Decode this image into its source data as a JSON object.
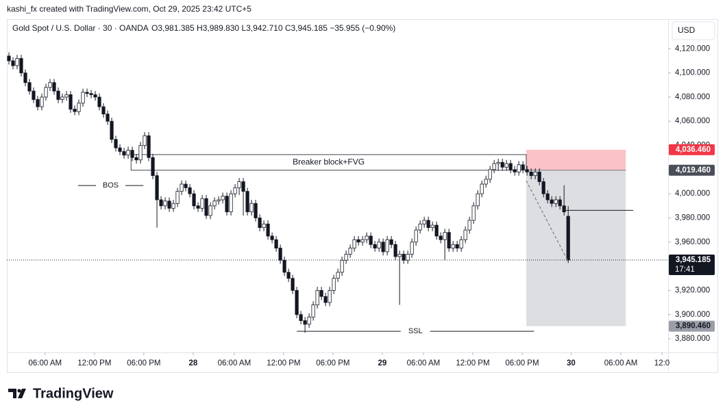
{
  "header": {
    "credit": "kashi_fx created with TradingView.com, Oct 29, 2025 23:42 UTC+5",
    "logo": "TradingView"
  },
  "chart_data": {
    "type": "candlestick",
    "title": "Gold Spot / U.S. Dollar · 30 · OANDA",
    "subtitle": "O3,981.385  H3,989.830  L3,942.710  C3,945.185  −35.955 (−0.90%)",
    "currency": "USD",
    "up_color": "#ffffff",
    "down_color": "#131722",
    "xlim": [
      -0.5,
      160.3
    ],
    "xticks": [
      {
        "value": 8.8,
        "label": "06:00 AM"
      },
      {
        "value": 20.8,
        "label": "12:00 PM"
      },
      {
        "value": 32.8,
        "label": "06:00 PM"
      },
      {
        "value": 44.8,
        "label": "28"
      },
      {
        "value": 54.8,
        "label": "06:00 AM"
      },
      {
        "value": 66.8,
        "label": "12:00 PM"
      },
      {
        "value": 78.8,
        "label": "06:00 PM"
      },
      {
        "value": 90.8,
        "label": "29"
      },
      {
        "value": 100.8,
        "label": "06:00 AM"
      },
      {
        "value": 112.8,
        "label": "12:00 PM"
      },
      {
        "value": 124.8,
        "label": "06:00 PM"
      },
      {
        "value": 136.7,
        "label": "30"
      },
      {
        "value": 148.8,
        "label": "06:00 AM"
      },
      {
        "value": 158.8,
        "label": "12:0"
      }
    ],
    "ylim": [
      3868.7,
      4144.5
    ],
    "yticks": [
      {
        "value": 3880,
        "label": "3,880.000"
      },
      {
        "value": 3900,
        "label": "3,900.000"
      },
      {
        "value": 3920,
        "label": "3,920.000"
      },
      {
        "value": 3940,
        "label": "3,940.000"
      },
      {
        "value": 3960,
        "label": "3,960.000"
      },
      {
        "value": 3980,
        "label": "3,980.000"
      },
      {
        "value": 4000,
        "label": "4,000.000"
      },
      {
        "value": 4020,
        "label": "4,020.000"
      },
      {
        "value": 4040,
        "label": "4,040.000"
      },
      {
        "value": 4060,
        "label": "4,060.000"
      },
      {
        "value": 4080,
        "label": "4,080.000"
      },
      {
        "value": 4100,
        "label": "4,100.000"
      },
      {
        "value": 4120,
        "label": "4,120.000"
      }
    ],
    "open": [
      4114,
      4110,
      4106,
      4112,
      4100,
      4092,
      4085,
      4078,
      4072,
      4080,
      4088,
      4092,
      4085,
      4078,
      4080,
      4082,
      4070,
      4068,
      4075,
      4084,
      4083,
      4082,
      4080,
      4072,
      4066,
      4060,
      4045,
      4038,
      4035,
      4032,
      4036,
      4030,
      4028,
      4040,
      4048,
      4030,
      4015,
      3995,
      3990,
      3994,
      3988,
      3992,
      4002,
      4008,
      4005,
      4000,
      3990,
      3988,
      3996,
      3982,
      3990,
      3994,
      3995,
      3998,
      3985,
      4000,
      4005,
      4010,
      4002,
      3985,
      3992,
      3980,
      3972,
      3975,
      3965,
      3962,
      3955,
      3945,
      3935,
      3930,
      3920,
      3900,
      3895,
      3892,
      3898,
      3908,
      3920,
      3915,
      3910,
      3920,
      3930,
      3935,
      3945,
      3950,
      3955,
      3962,
      3960,
      3962,
      3965,
      3958,
      3955,
      3960,
      3952,
      3962,
      3958,
      3948,
      3950,
      3945,
      3950,
      3960,
      3970,
      3975,
      3978,
      3972,
      3974,
      3965,
      3962,
      3968,
      3955,
      3958,
      3955,
      3962,
      3970,
      3978,
      3990,
      4000,
      4008,
      4012,
      4020,
      4025,
      4026,
      4022,
      4025,
      4020,
      4018,
      4024,
      4020,
      4018,
      4015,
      4018,
      4010,
      4000,
      3995,
      3992,
      3995,
      3990,
      3981.385
    ],
    "high": [
      4117,
      4113,
      4115,
      4115,
      4103,
      4095,
      4088,
      4081,
      4083,
      4091,
      4095,
      4095,
      4088,
      4083,
      4085,
      4085,
      4073,
      4078,
      4087,
      4087,
      4086,
      4085,
      4083,
      4075,
      4069,
      4063,
      4048,
      4041,
      4038,
      4039,
      4039,
      4033,
      4043,
      4051,
      4051,
      4033,
      4018,
      3998,
      3997,
      3997,
      3995,
      4005,
      4011,
      4011,
      4008,
      4003,
      3993,
      3999,
      3999,
      3993,
      3997,
      3998,
      4001,
      4001,
      4003,
      4008,
      4013,
      4013,
      4005,
      3995,
      3995,
      3983,
      3978,
      3978,
      3968,
      3965,
      3958,
      3948,
      3938,
      3933,
      3923,
      3903,
      3898,
      3901,
      3911,
      3923,
      3923,
      3918,
      3923,
      3933,
      3938,
      3948,
      3953,
      3958,
      3965,
      3965,
      3965,
      3968,
      3968,
      3961,
      3963,
      3963,
      3965,
      3965,
      3961,
      3953,
      3953,
      3953,
      3963,
      3973,
      3978,
      3981,
      3981,
      3977,
      3977,
      3968,
      3971,
      3971,
      3961,
      3961,
      3965,
      3973,
      3981,
      3993,
      4003,
      4011,
      4015,
      4023,
      4028,
      4029,
      4029,
      4028,
      4028,
      4023,
      4027,
      4027,
      4023,
      4021,
      4021,
      4021,
      4013,
      4003,
      3998,
      3998,
      3998,
      4007,
      3989.83
    ],
    "low": [
      4107,
      4103,
      4103,
      4097,
      4089,
      4082,
      4075,
      4069,
      4069,
      4077,
      4085,
      4082,
      4075,
      4075,
      4077,
      4067,
      4065,
      4065,
      4072,
      4080,
      4079,
      4077,
      4069,
      4063,
      4057,
      4042,
      4035,
      4032,
      4029,
      4029,
      4027,
      4025,
      4025,
      4037,
      4027,
      4012,
      3972,
      3987,
      3987,
      3985,
      3985,
      3989,
      3999,
      4002,
      3997,
      3987,
      3985,
      3985,
      3979,
      3979,
      3987,
      3991,
      3992,
      3982,
      3982,
      3997,
      3999,
      3982,
      3982,
      3982,
      3977,
      3969,
      3969,
      3962,
      3959,
      3952,
      3942,
      3932,
      3927,
      3917,
      3897,
      3892,
      3885,
      3889,
      3895,
      3905,
      3912,
      3907,
      3907,
      3917,
      3927,
      3932,
      3942,
      3947,
      3952,
      3957,
      3957,
      3959,
      3955,
      3952,
      3952,
      3949,
      3949,
      3955,
      3945,
      3908,
      3942,
      3942,
      3947,
      3957,
      3967,
      3972,
      3969,
      3969,
      3962,
      3959,
      3945,
      3952,
      3952,
      3952,
      3952,
      3959,
      3967,
      3975,
      3987,
      3997,
      4005,
      4009,
      4017,
      4019,
      4019,
      4019,
      4017,
      4015,
      4015,
      4017,
      4015,
      4012,
      4012,
      4007,
      3997,
      3992,
      3989,
      3989,
      3987,
      3982,
      3942.71
    ],
    "close": [
      4110,
      4106,
      4112,
      4100,
      4092,
      4085,
      4078,
      4072,
      4080,
      4088,
      4092,
      4085,
      4078,
      4080,
      4082,
      4070,
      4068,
      4075,
      4084,
      4083,
      4082,
      4080,
      4072,
      4066,
      4060,
      4045,
      4038,
      4035,
      4032,
      4036,
      4030,
      4028,
      4040,
      4048,
      4030,
      4015,
      3995,
      3990,
      3994,
      3988,
      3992,
      4002,
      4008,
      4005,
      4000,
      3990,
      3988,
      3996,
      3982,
      3990,
      3994,
      3995,
      3998,
      3985,
      4000,
      4005,
      4010,
      4002,
      3985,
      3992,
      3980,
      3972,
      3975,
      3965,
      3962,
      3955,
      3945,
      3935,
      3930,
      3920,
      3900,
      3895,
      3892,
      3898,
      3908,
      3920,
      3915,
      3910,
      3920,
      3930,
      3935,
      3945,
      3950,
      3955,
      3962,
      3960,
      3962,
      3965,
      3958,
      3955,
      3960,
      3952,
      3962,
      3958,
      3948,
      3950,
      3945,
      3950,
      3960,
      3970,
      3975,
      3978,
      3972,
      3974,
      3965,
      3962,
      3968,
      3955,
      3958,
      3955,
      3962,
      3970,
      3978,
      3990,
      4000,
      4008,
      4012,
      4020,
      4025,
      4026,
      4022,
      4025,
      4020,
      4018,
      4024,
      4020,
      4018,
      4015,
      4018,
      4010,
      4000,
      3995,
      3992,
      3995,
      3990,
      3985,
      3945.185
    ],
    "last_price": {
      "value": 3945.185,
      "label": "3,945.185",
      "countdown": "17:41"
    },
    "zones": [
      {
        "text": "Breaker block+FVG",
        "x": [
          29.7,
          125.8
        ],
        "y": [
          4019.46,
          4032.4
        ]
      }
    ],
    "lines": [
      {
        "text": "BOS",
        "x": [
          16.8,
          32.7
        ],
        "y": 4006.8
      },
      {
        "text": "SSL",
        "x": [
          70,
          127.7
        ],
        "y": 3886.2
      },
      {
        "x": [
          135.5,
          151.8
        ],
        "y": 3986.3
      }
    ],
    "position": {
      "x": [
        125.8,
        150
      ],
      "target": {
        "value": 4036.46,
        "label": "4,036.460",
        "color": "#f23645"
      },
      "entry": {
        "value": 4019.46,
        "label": "4,019.460"
      },
      "stop": {
        "value": 3890.46,
        "label": "3,890.460"
      }
    },
    "path": {
      "x": [
        125.8,
        136
      ],
      "y": [
        4010.8,
        3944
      ]
    }
  }
}
